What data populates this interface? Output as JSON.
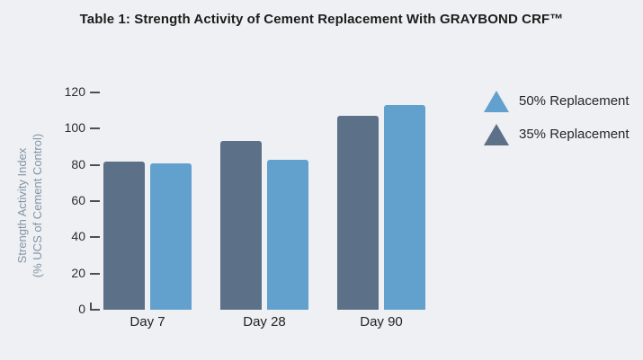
{
  "page": {
    "background": "#eef0f3"
  },
  "title": "Table 1: Strength Activity of Cement Replacement With GRAYBOND CRF™",
  "chart_data": {
    "type": "bar",
    "title": "Table 1: Strength Activity of Cement Replacement With GRAYBOND CRF™",
    "categories": [
      "Day 7",
      "Day 28",
      "Day 90"
    ],
    "series": [
      {
        "name": "35% Replacement",
        "color": "#5c7088",
        "values": [
          82,
          93,
          107
        ]
      },
      {
        "name": "50% Replacement",
        "color": "#62a0cd",
        "values": [
          81,
          83,
          113
        ]
      }
    ],
    "legend": [
      {
        "label": "50% Replacement",
        "color": "#62a0cd"
      },
      {
        "label": "35% Replacement",
        "color": "#5c7088"
      }
    ],
    "ylabel": "Strength Activity Index (% UCS of Cement Control)",
    "ylabel_line1": "Strength Activity Index",
    "ylabel_line2": "(% UCS of Cement Control)",
    "xlabel": "",
    "yticks": [
      0,
      20,
      40,
      60,
      80,
      100,
      120
    ],
    "ylim": [
      0,
      120
    ],
    "grid": false,
    "legend_position": "right"
  },
  "colors": {
    "background": "#eef0f3",
    "title_text": "#1c1c1c",
    "axis_text": "#2d2d2d",
    "ylabel_text": "#8494a6",
    "tick_mark": "#4f4f4f",
    "bar_35_replacement": "#5c7088",
    "bar_50_replacement": "#62a0cd"
  }
}
